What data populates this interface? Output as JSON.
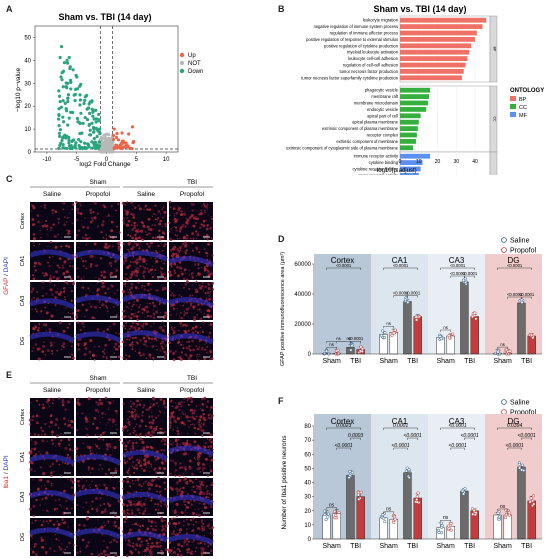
{
  "panels": {
    "a": "A",
    "b": "B",
    "c": "C",
    "d": "D",
    "e": "E",
    "f": "F"
  },
  "colors": {
    "up": "#e8664a",
    "down": "#2aa37f",
    "notsig": "#b8b8b8",
    "bp": "#f07167",
    "cc": "#35b03f",
    "mf": "#5b8ff0",
    "saline": "#2b5c8a",
    "propofol": "#c42f2f",
    "sham_bar": "#ffffff",
    "tbi_saline_bar": "#6b6b6b",
    "tbi_propofol_bar": "#c43b3b",
    "bg_cortex": "#b8c8d8",
    "bg_ca1": "#dce6ee",
    "bg_ca3": "#e8eef3",
    "bg_dg": "#f0cccc"
  },
  "volcano": {
    "title": "Sham vs. TBI (14 day)",
    "xlabel": "log2 Fold Change",
    "ylabel": "−log10 p−value",
    "xticks": [
      "-10",
      "-5",
      "0",
      "5",
      "10"
    ],
    "yticks": [
      "0",
      "10",
      "20",
      "30",
      "40",
      "50"
    ],
    "legend": [
      "Up",
      "NOT",
      "Down"
    ]
  },
  "go": {
    "title": "Sham vs. TBI (14 day)",
    "xlabel": "−log10(p.adjust)",
    "xticks": [
      "0",
      "10",
      "20",
      "30",
      "40"
    ],
    "legend_title": "ONTOLOGY",
    "legend": [
      "BP",
      "CC",
      "MF"
    ],
    "facet_labels": [
      "BP",
      "CC",
      "MF"
    ],
    "bp": [
      {
        "term": "leukocyte migration",
        "value": 46
      },
      {
        "term": "negative regulation of immune system process",
        "value": 44
      },
      {
        "term": "regulation of immune effector process",
        "value": 41
      },
      {
        "term": "positive regulation of response to external stimulus",
        "value": 40
      },
      {
        "term": "positive regulation of cytokine production",
        "value": 38
      },
      {
        "term": "myeloid leukocyte activation",
        "value": 37
      },
      {
        "term": "leukocyte cell-cell adhesion",
        "value": 36
      },
      {
        "term": "regulation of cell-cell adhesion",
        "value": 35
      },
      {
        "term": "tumor necrosis factor production",
        "value": 34
      },
      {
        "term": "tumor necrosis factor superfamily cytokine production",
        "value": 33
      }
    ],
    "cc": [
      {
        "term": "phagocytic vesicle",
        "value": 16
      },
      {
        "term": "membrane raft",
        "value": 15.5
      },
      {
        "term": "membrane microdomain",
        "value": 15
      },
      {
        "term": "endocytic vesicle",
        "value": 14
      },
      {
        "term": "apical part of cell",
        "value": 11
      },
      {
        "term": "apical plasma membrane",
        "value": 10
      },
      {
        "term": "extrinsic component of plasma membrane",
        "value": 9.5
      },
      {
        "term": "receptor complex",
        "value": 9
      },
      {
        "term": "extrinsic component of membrane",
        "value": 8.5
      },
      {
        "term": "extrinsic component of cytoplasmic side of plasma membrane",
        "value": 7
      }
    ],
    "mf": [
      {
        "term": "immune receptor activity",
        "value": 16
      },
      {
        "term": "cytokine binding",
        "value": 12
      },
      {
        "term": "cytokine receptor binding",
        "value": 11
      },
      {
        "term": "cargo receptor activity",
        "value": 10
      },
      {
        "term": "cytokine receptor activity",
        "value": 9.5
      },
      {
        "term": "phospholipid binding",
        "value": 9
      },
      {
        "term": "pattern recognition receptor activity",
        "value": 8.5
      },
      {
        "term": "actin binding",
        "value": 8
      },
      {
        "term": "cytokine activity",
        "value": 7.5
      },
      {
        "term": "phosphotyrosine residue binding",
        "value": 6.5
      }
    ]
  },
  "micro": {
    "c": {
      "sham": "Sham",
      "tbi": "TBI",
      "saline": "Saline",
      "propofol": "Propofol",
      "stain_red": "GFAP",
      "stain_blue": "DAPI",
      "rows": [
        "Cortex",
        "CA1",
        "CA3",
        "DG"
      ]
    },
    "e": {
      "sham": "Sham",
      "tbi": "TBI",
      "saline": "Saline",
      "propofol": "Propofol",
      "stain_red": "Iba1",
      "stain_blue": "DAPI",
      "rows": [
        "Cortex",
        "CA1",
        "CA3",
        "DG"
      ]
    }
  },
  "chart_data": [
    {
      "type": "bar",
      "panel": "D",
      "ylabel": "GFAP positive immunofluorescence area (μm²)",
      "ylim": [
        0,
        60000
      ],
      "yticks": [
        "0",
        "20000",
        "40000",
        "60000"
      ],
      "legend": [
        "Saline",
        "Propofol"
      ],
      "group_labels": [
        "Sham",
        "TBI"
      ],
      "regions": [
        {
          "name": "Cortex",
          "values": [
            500,
            400,
            4500,
            3000
          ],
          "stats": [
            {
              "a": 0,
              "b": 2,
              "level": 0,
              "text": "ns"
            },
            {
              "a": 1,
              "b": 3,
              "level": 0,
              "text": "ns"
            },
            {
              "a": 2,
              "b": 3,
              "level": 0,
              "text": "<0.0001"
            },
            {
              "a": 0,
              "b": 1,
              "level": 0,
              "text": "ns"
            },
            {
              "a": 0,
              "b": 3,
              "level": 1,
              "text": "<0.0001"
            }
          ]
        },
        {
          "name": "CA1",
          "values": [
            13000,
            14500,
            35000,
            25000
          ],
          "stats": [
            {
              "a": 0,
              "b": 1,
              "level": 0,
              "text": "ns"
            },
            {
              "a": 1,
              "b": 2,
              "level": 0,
              "text": "<0.0001"
            },
            {
              "a": 2,
              "b": 3,
              "level": 0,
              "text": "<0.0001"
            },
            {
              "a": 0,
              "b": 3,
              "level": 1,
              "text": "<0.0001"
            }
          ]
        },
        {
          "name": "CA3",
          "values": [
            11000,
            12000,
            48000,
            25000
          ],
          "stats": [
            {
              "a": 0,
              "b": 1,
              "level": 0,
              "text": "ns"
            },
            {
              "a": 1,
              "b": 2,
              "level": 0,
              "text": "<0.0001"
            },
            {
              "a": 2,
              "b": 3,
              "level": 0,
              "text": "<0.0001"
            },
            {
              "a": 0,
              "b": 3,
              "level": 1,
              "text": "<0.0001"
            }
          ]
        },
        {
          "name": "DG",
          "values": [
            500,
            600,
            34000,
            12000
          ],
          "stats": [
            {
              "a": 0,
              "b": 1,
              "level": 0,
              "text": "ns"
            },
            {
              "a": 1,
              "b": 2,
              "level": 0,
              "text": "<0.0001"
            },
            {
              "a": 2,
              "b": 3,
              "level": 0,
              "text": "<0.0001"
            },
            {
              "a": 0,
              "b": 3,
              "level": 1,
              "text": "<0.0001"
            }
          ]
        }
      ]
    },
    {
      "type": "bar",
      "panel": "F",
      "ylabel": "Number of Iba1 positive neurons",
      "ylim": [
        0,
        80
      ],
      "yticks": [
        "0",
        "10",
        "20",
        "30",
        "40",
        "50",
        "60",
        "70",
        "80"
      ],
      "legend": [
        "Saline",
        "Propofol"
      ],
      "group_labels": [
        "Sham",
        "TBI"
      ],
      "regions": [
        {
          "name": "Cortex",
          "values": [
            17,
            18,
            45,
            30
          ],
          "stats": [
            {
              "a": 0,
              "b": 1,
              "level": 0,
              "text": "ns"
            },
            {
              "a": 1,
              "b": 2,
              "level": 1,
              "text": "<0.0001"
            },
            {
              "a": 2,
              "b": 3,
              "level": 2,
              "text": "0.0003"
            },
            {
              "a": 0,
              "b": 3,
              "level": 3,
              "text": "0.0023"
            }
          ]
        },
        {
          "name": "CA1",
          "values": [
            15,
            14,
            47,
            29
          ],
          "stats": [
            {
              "a": 0,
              "b": 1,
              "level": 0,
              "text": "ns"
            },
            {
              "a": 1,
              "b": 2,
              "level": 1,
              "text": "<0.0001"
            },
            {
              "a": 2,
              "b": 3,
              "level": 2,
              "text": "<0.0001"
            },
            {
              "a": 0,
              "b": 3,
              "level": 3,
              "text": "0.0001"
            }
          ]
        },
        {
          "name": "CA3",
          "values": [
            8,
            9,
            34,
            20
          ],
          "stats": [
            {
              "a": 0,
              "b": 1,
              "level": 0,
              "text": "ns"
            },
            {
              "a": 1,
              "b": 2,
              "level": 1,
              "text": "<0.0001"
            },
            {
              "a": 2,
              "b": 3,
              "level": 2,
              "text": "<0.0001"
            },
            {
              "a": 0,
              "b": 3,
              "level": 3,
              "text": "<0.0001"
            }
          ]
        },
        {
          "name": "DG",
          "values": [
            17,
            17,
            51,
            27
          ],
          "stats": [
            {
              "a": 0,
              "b": 1,
              "level": 0,
              "text": "ns"
            },
            {
              "a": 1,
              "b": 2,
              "level": 1,
              "text": "<0.0001"
            },
            {
              "a": 2,
              "b": 3,
              "level": 2,
              "text": "<0.0001"
            },
            {
              "a": 0,
              "b": 3,
              "level": 3,
              "text": "0.0394"
            }
          ]
        }
      ]
    }
  ]
}
